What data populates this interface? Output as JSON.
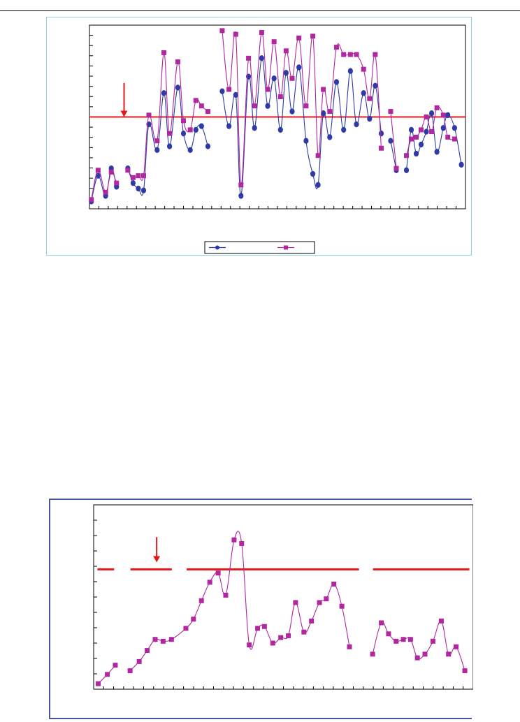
{
  "colors": {
    "series_a": "#2e3aa6",
    "series_b": "#b0279f",
    "reference_line": "#e0191c",
    "arrow": "#e0191c",
    "panel1_border": "#8fd3e0",
    "panel2_border": "#4a55a8"
  },
  "chart_data": [
    {
      "type": "line",
      "title": "",
      "xlabel": "",
      "ylabel": "",
      "grid": false,
      "legend": "bottom-center",
      "xlim": [
        0,
        100
      ],
      "ylim": [
        0,
        100
      ],
      "reference_line": {
        "y": 50
      },
      "annotations": [
        {
          "kind": "arrow",
          "x": 9.2,
          "from_y": 68.5,
          "to_y": 50
        }
      ],
      "series": [
        {
          "values": [
            [
              0.5,
              4
            ],
            [
              2.3,
              18
            ],
            [
              4.3,
              7
            ],
            [
              5.8,
              22
            ],
            [
              7.2,
              12
            ],
            [
              null,
              null
            ],
            [
              10.2,
              22
            ],
            [
              11.6,
              14
            ],
            [
              13.0,
              11
            ],
            [
              14.4,
              10
            ],
            [
              15.8,
              46
            ],
            [
              18.0,
              32
            ],
            [
              19.8,
              63
            ],
            [
              21.3,
              34
            ],
            [
              23.5,
              66
            ],
            [
              25.0,
              41
            ],
            [
              26.8,
              32
            ],
            [
              28.3,
              43
            ],
            [
              29.8,
              45
            ],
            [
              31.5,
              34
            ],
            [
              null,
              null
            ],
            [
              35.3,
              64
            ],
            [
              37.1,
              45
            ],
            [
              38.9,
              62
            ],
            [
              40.3,
              7
            ],
            [
              42.3,
              72
            ],
            [
              43.9,
              44
            ],
            [
              45.8,
              82
            ],
            [
              47.4,
              56
            ],
            [
              49.1,
              71
            ],
            [
              50.8,
              43
            ],
            [
              52.3,
              74
            ],
            [
              53.9,
              53
            ],
            [
              55.7,
              77
            ],
            [
              57.6,
              37
            ],
            [
              59.4,
              19
            ],
            [
              60.8,
              13
            ],
            [
              62.2,
              52
            ],
            [
              63.9,
              39
            ],
            [
              65.7,
              69
            ],
            [
              67.6,
              43
            ],
            [
              69.4,
              75
            ],
            [
              71.0,
              46
            ],
            [
              72.9,
              63
            ],
            [
              74.5,
              49
            ],
            [
              76.0,
              67
            ],
            [
              77.6,
              41
            ],
            [
              null,
              null
            ],
            [
              80.1,
              37
            ],
            [
              81.6,
              21
            ],
            [
              null,
              null
            ],
            [
              84.3,
              21
            ],
            [
              85.6,
              43
            ],
            [
              86.9,
              30
            ],
            [
              88.2,
              35
            ],
            [
              89.6,
              42
            ],
            [
              91.0,
              52
            ],
            [
              92.4,
              31
            ],
            [
              94.1,
              44
            ],
            [
              95.3,
              51
            ],
            [
              97.1,
              44
            ],
            [
              98.9,
              24
            ]
          ]
        },
        {
          "values": [
            [
              0.5,
              5
            ],
            [
              2.3,
              21
            ],
            [
              4.3,
              9
            ],
            [
              5.8,
              20
            ],
            [
              7.2,
              14
            ],
            [
              null,
              null
            ],
            [
              10.2,
              21
            ],
            [
              11.6,
              17
            ],
            [
              13.0,
              18
            ],
            [
              14.4,
              18
            ],
            [
              15.8,
              51
            ],
            [
              18.0,
              37
            ],
            [
              19.8,
              85
            ],
            [
              21.3,
              41
            ],
            [
              23.5,
              80
            ],
            [
              25.0,
              48
            ],
            [
              26.8,
              43
            ],
            [
              28.3,
              59
            ],
            [
              29.8,
              56
            ],
            [
              31.5,
              53
            ],
            [
              null,
              null
            ],
            [
              35.3,
              97
            ],
            [
              37.1,
              65
            ],
            [
              38.9,
              95
            ],
            [
              40.3,
              13
            ],
            [
              42.3,
              82
            ],
            [
              43.9,
              56
            ],
            [
              45.8,
              96
            ],
            [
              47.4,
              65
            ],
            [
              49.1,
              91
            ],
            [
              50.8,
              61
            ],
            [
              52.3,
              86
            ],
            [
              53.9,
              71
            ],
            [
              55.7,
              93
            ],
            [
              57.6,
              56
            ],
            [
              59.4,
              94
            ],
            [
              60.8,
              29
            ],
            [
              62.2,
              65
            ],
            [
              63.9,
              53
            ],
            [
              65.7,
              88
            ],
            [
              67.6,
              84
            ],
            [
              69.4,
              84
            ],
            [
              71.0,
              84
            ],
            [
              72.9,
              76
            ],
            [
              74.5,
              60
            ],
            [
              76.0,
              84
            ],
            [
              77.6,
              33
            ],
            [
              null,
              null
            ],
            [
              80.1,
              53
            ],
            [
              81.6,
              22
            ],
            [
              null,
              null
            ],
            [
              84.3,
              29
            ],
            [
              85.6,
              38
            ],
            [
              86.9,
              39
            ],
            [
              88.2,
              43
            ],
            [
              89.6,
              50
            ],
            [
              91.0,
              42
            ],
            [
              92.4,
              55
            ],
            [
              94.1,
              51
            ],
            [
              95.3,
              39
            ],
            [
              97.1,
              38
            ]
          ]
        }
      ]
    },
    {
      "type": "line",
      "title": "",
      "xlabel": "",
      "ylabel": "",
      "grid": false,
      "legend": "none",
      "xlim": [
        0,
        100
      ],
      "ylim": [
        0,
        100
      ],
      "reference_line": {
        "y": 65,
        "segments": [
          [
            1,
            5.4
          ],
          [
            9.7,
            20.6
          ],
          [
            24.5,
            69.9
          ],
          [
            73.6,
            99
          ]
        ]
      },
      "annotations": [
        {
          "kind": "arrow",
          "x": 16.6,
          "from_y": 82.5,
          "to_y": 68.8
        }
      ],
      "series": [
        {
          "values": [
            [
              1.2,
              3
            ],
            [
              3.6,
              8
            ],
            [
              5.7,
              13
            ],
            [
              null,
              null
            ],
            [
              9.6,
              10
            ],
            [
              12.0,
              15
            ],
            [
              14.1,
              21
            ],
            [
              16.2,
              27
            ],
            [
              18.3,
              26
            ],
            [
              20.5,
              27
            ],
            [
              24.3,
              33
            ],
            [
              26.3,
              38
            ],
            [
              28.4,
              48
            ],
            [
              30.6,
              58
            ],
            [
              32.8,
              63
            ],
            [
              34.8,
              51
            ],
            [
              37.0,
              81
            ],
            [
              39.0,
              79
            ],
            [
              41.0,
              24
            ],
            [
              43.2,
              33
            ],
            [
              45.0,
              34
            ],
            [
              47.2,
              25
            ],
            [
              49.3,
              28
            ],
            [
              51.3,
              29
            ],
            [
              53.2,
              47
            ],
            [
              55.4,
              31
            ],
            [
              57.4,
              37
            ],
            [
              59.5,
              47
            ],
            [
              61.3,
              49
            ],
            [
              63.3,
              57
            ],
            [
              65.4,
              45
            ],
            [
              67.4,
              23
            ],
            [
              null,
              null
            ],
            [
              73.5,
              19
            ],
            [
              75.8,
              36
            ],
            [
              77.7,
              30
            ],
            [
              79.7,
              26
            ],
            [
              81.6,
              27
            ],
            [
              83.5,
              27
            ],
            [
              85.3,
              17
            ],
            [
              87.3,
              19
            ],
            [
              89.4,
              26
            ],
            [
              91.6,
              37
            ],
            [
              93.5,
              19
            ],
            [
              95.5,
              23
            ],
            [
              97.8,
              10
            ]
          ]
        }
      ]
    }
  ]
}
